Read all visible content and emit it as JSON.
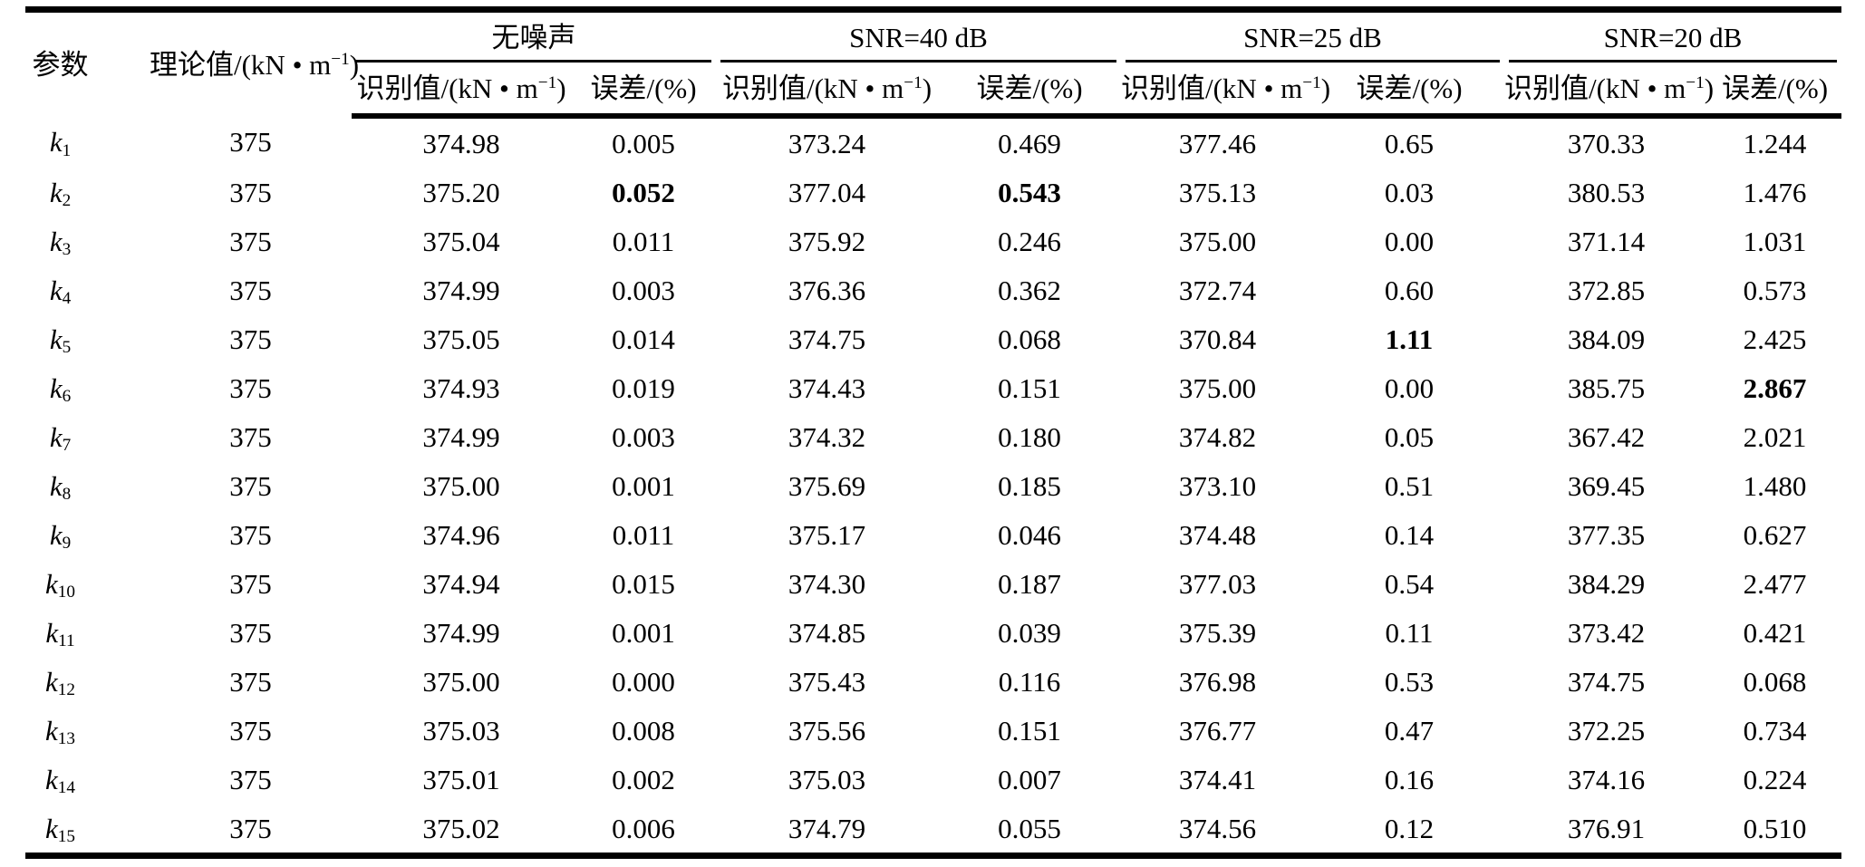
{
  "header": {
    "param": "参数",
    "theory": {
      "pre": "理论值/(kN • m",
      "sup": "−1",
      "post": ")"
    },
    "value_col": {
      "pre": "识别值/(kN • m",
      "sup": "−1",
      "post": ")"
    },
    "error_col": "误差/(%)",
    "groups": [
      {
        "label": "无噪声"
      },
      {
        "label": "SNR=40 dB"
      },
      {
        "label": "SNR=25 dB"
      },
      {
        "label": "SNR=20 dB"
      }
    ]
  },
  "table": {
    "columns_order": [
      "理论值",
      "无噪声:识别值",
      "无噪声:误差",
      "SNR=40dB:识别值",
      "SNR=40dB:误差",
      "SNR=25dB:识别值",
      "SNR=25dB:误差",
      "SNR=20dB:识别值",
      "SNR=20dB:误差"
    ],
    "rows": [
      {
        "param_base": "k",
        "param_sub": "1",
        "cells": [
          "375",
          "374.98",
          "0.005",
          "373.24",
          "0.469",
          "377.46",
          "0.65",
          "370.33",
          "1.244"
        ],
        "bold": []
      },
      {
        "param_base": "k",
        "param_sub": "2",
        "cells": [
          "375",
          "375.20",
          "0.052",
          "377.04",
          "0.543",
          "375.13",
          "0.03",
          "380.53",
          "1.476"
        ],
        "bold": [
          2,
          4
        ]
      },
      {
        "param_base": "k",
        "param_sub": "3",
        "cells": [
          "375",
          "375.04",
          "0.011",
          "375.92",
          "0.246",
          "375.00",
          "0.00",
          "371.14",
          "1.031"
        ],
        "bold": []
      },
      {
        "param_base": "k",
        "param_sub": "4",
        "cells": [
          "375",
          "374.99",
          "0.003",
          "376.36",
          "0.362",
          "372.74",
          "0.60",
          "372.85",
          "0.573"
        ],
        "bold": []
      },
      {
        "param_base": "k",
        "param_sub": "5",
        "cells": [
          "375",
          "375.05",
          "0.014",
          "374.75",
          "0.068",
          "370.84",
          "1.11",
          "384.09",
          "2.425"
        ],
        "bold": [
          6
        ]
      },
      {
        "param_base": "k",
        "param_sub": "6",
        "cells": [
          "375",
          "374.93",
          "0.019",
          "374.43",
          "0.151",
          "375.00",
          "0.00",
          "385.75",
          "2.867"
        ],
        "bold": [
          8
        ]
      },
      {
        "param_base": "k",
        "param_sub": "7",
        "cells": [
          "375",
          "374.99",
          "0.003",
          "374.32",
          "0.180",
          "374.82",
          "0.05",
          "367.42",
          "2.021"
        ],
        "bold": []
      },
      {
        "param_base": "k",
        "param_sub": "8",
        "cells": [
          "375",
          "375.00",
          "0.001",
          "375.69",
          "0.185",
          "373.10",
          "0.51",
          "369.45",
          "1.480"
        ],
        "bold": []
      },
      {
        "param_base": "k",
        "param_sub": "9",
        "cells": [
          "375",
          "374.96",
          "0.011",
          "375.17",
          "0.046",
          "374.48",
          "0.14",
          "377.35",
          "0.627"
        ],
        "bold": []
      },
      {
        "param_base": "k",
        "param_sub": "10",
        "cells": [
          "375",
          "374.94",
          "0.015",
          "374.30",
          "0.187",
          "377.03",
          "0.54",
          "384.29",
          "2.477"
        ],
        "bold": []
      },
      {
        "param_base": "k",
        "param_sub": "11",
        "cells": [
          "375",
          "374.99",
          "0.001",
          "374.85",
          "0.039",
          "375.39",
          "0.11",
          "373.42",
          "0.421"
        ],
        "bold": []
      },
      {
        "param_base": "k",
        "param_sub": "12",
        "cells": [
          "375",
          "375.00",
          "0.000",
          "375.43",
          "0.116",
          "376.98",
          "0.53",
          "374.75",
          "0.068"
        ],
        "bold": []
      },
      {
        "param_base": "k",
        "param_sub": "13",
        "cells": [
          "375",
          "375.03",
          "0.008",
          "375.56",
          "0.151",
          "376.77",
          "0.47",
          "372.25",
          "0.734"
        ],
        "bold": []
      },
      {
        "param_base": "k",
        "param_sub": "14",
        "cells": [
          "375",
          "375.01",
          "0.002",
          "375.03",
          "0.007",
          "374.41",
          "0.16",
          "374.16",
          "0.224"
        ],
        "bold": []
      },
      {
        "param_base": "k",
        "param_sub": "15",
        "cells": [
          "375",
          "375.02",
          "0.006",
          "374.79",
          "0.055",
          "374.56",
          "0.12",
          "376.91",
          "0.510"
        ],
        "bold": []
      }
    ]
  },
  "colors": {
    "text": "#000000",
    "background": "#ffffff",
    "rule": "#000000"
  }
}
